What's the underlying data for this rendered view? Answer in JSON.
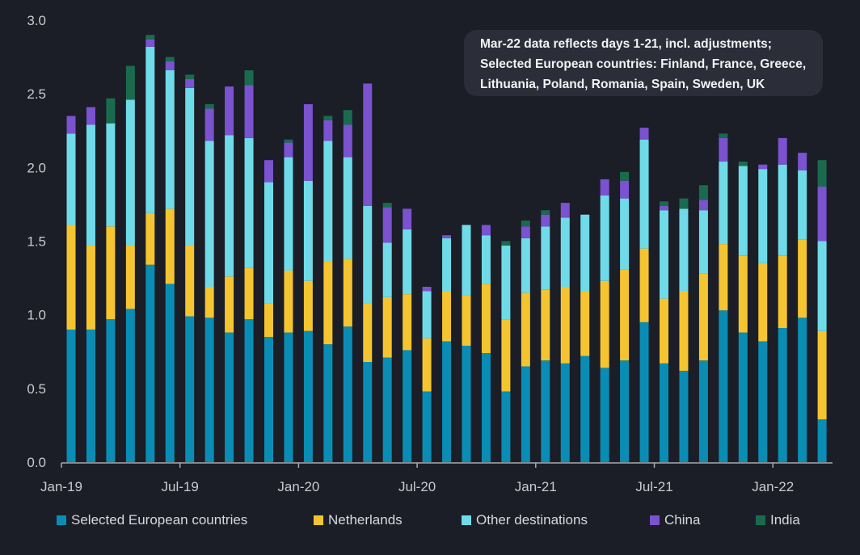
{
  "chart_data": {
    "type": "bar",
    "stacked": true,
    "annotation": [
      "Mar-22 data reflects days 1-21,  incl. adjustments;",
      "Selected European countries: Finland, France, Greece,",
      "Lithuania,  Poland, Romania, Spain, Sweden, UK"
    ],
    "categories": [
      "Jan-19",
      "Feb-19",
      "Mar-19",
      "Apr-19",
      "May-19",
      "Jun-19",
      "Jul-19",
      "Aug-19",
      "Sep-19",
      "Oct-19",
      "Nov-19",
      "Dec-19",
      "Jan-20",
      "Feb-20",
      "Mar-20",
      "Apr-20",
      "May-20",
      "Jun-20",
      "Jul-20",
      "Aug-20",
      "Sep-20",
      "Oct-20",
      "Nov-20",
      "Dec-20",
      "Jan-21",
      "Feb-21",
      "Mar-21",
      "Apr-21",
      "May-21",
      "Jun-21",
      "Jul-21",
      "Aug-21",
      "Sep-21",
      "Oct-21",
      "Nov-21",
      "Dec-21",
      "Jan-22",
      "Feb-22",
      "Mar-22"
    ],
    "x_tick_labels": [
      "Jan-19",
      "Jul-19",
      "Jan-20",
      "Jul-20",
      "Jan-21",
      "Jul-21",
      "Jan-22"
    ],
    "y_ticks": [
      "0.0",
      "0.5",
      "1.0",
      "1.5",
      "2.0",
      "2.5",
      "3.0"
    ],
    "ylim": [
      0,
      3.0
    ],
    "series": [
      {
        "name": "Selected European countries",
        "color": "#0a8db4",
        "values": [
          0.9,
          0.9,
          0.97,
          1.04,
          1.34,
          1.21,
          0.99,
          0.98,
          0.88,
          0.97,
          0.85,
          0.88,
          0.89,
          0.8,
          0.92,
          0.68,
          0.71,
          0.76,
          0.48,
          0.82,
          0.79,
          0.74,
          0.48,
          0.65,
          0.69,
          0.67,
          0.72,
          0.64,
          0.69,
          0.95,
          0.67,
          0.62,
          0.69,
          1.03,
          0.88,
          0.82,
          0.91,
          0.98,
          0.29
        ]
      },
      {
        "name": "Netherlands",
        "color": "#f5c531",
        "values": [
          0.71,
          0.57,
          0.63,
          0.43,
          0.35,
          0.51,
          0.48,
          0.21,
          0.38,
          0.35,
          0.23,
          0.42,
          0.34,
          0.56,
          0.46,
          0.4,
          0.41,
          0.38,
          0.36,
          0.34,
          0.34,
          0.47,
          0.49,
          0.5,
          0.48,
          0.52,
          0.44,
          0.59,
          0.62,
          0.5,
          0.44,
          0.54,
          0.59,
          0.45,
          0.52,
          0.53,
          0.49,
          0.53,
          0.6
        ]
      },
      {
        "name": "Other destinations",
        "color": "#6fdbe8",
        "values": [
          0.62,
          0.82,
          0.7,
          0.99,
          1.13,
          0.94,
          1.07,
          0.99,
          0.96,
          0.88,
          0.82,
          0.77,
          0.68,
          0.82,
          0.69,
          0.66,
          0.37,
          0.44,
          0.32,
          0.36,
          0.48,
          0.33,
          0.5,
          0.37,
          0.43,
          0.47,
          0.52,
          0.58,
          0.48,
          0.74,
          0.6,
          0.56,
          0.43,
          0.56,
          0.61,
          0.64,
          0.62,
          0.47,
          0.61
        ]
      },
      {
        "name": "China",
        "color": "#7b52cf",
        "values": [
          0.12,
          0.12,
          0.0,
          0.0,
          0.05,
          0.06,
          0.06,
          0.22,
          0.33,
          0.36,
          0.15,
          0.1,
          0.52,
          0.14,
          0.22,
          0.83,
          0.24,
          0.14,
          0.03,
          0.02,
          0.0,
          0.07,
          0.0,
          0.08,
          0.08,
          0.1,
          0.0,
          0.11,
          0.12,
          0.08,
          0.03,
          0.0,
          0.07,
          0.16,
          0.0,
          0.03,
          0.18,
          0.12,
          0.37
        ]
      },
      {
        "name": "India",
        "color": "#1a6b4e",
        "values": [
          0.0,
          0.0,
          0.17,
          0.23,
          0.03,
          0.03,
          0.03,
          0.03,
          0.0,
          0.1,
          0.0,
          0.02,
          0.0,
          0.03,
          0.1,
          0.0,
          0.03,
          0.0,
          0.0,
          0.0,
          0.0,
          0.0,
          0.03,
          0.04,
          0.03,
          0.0,
          0.0,
          0.0,
          0.06,
          0.0,
          0.03,
          0.07,
          0.1,
          0.03,
          0.03,
          0.0,
          0.0,
          0.0,
          0.18
        ]
      }
    ]
  }
}
